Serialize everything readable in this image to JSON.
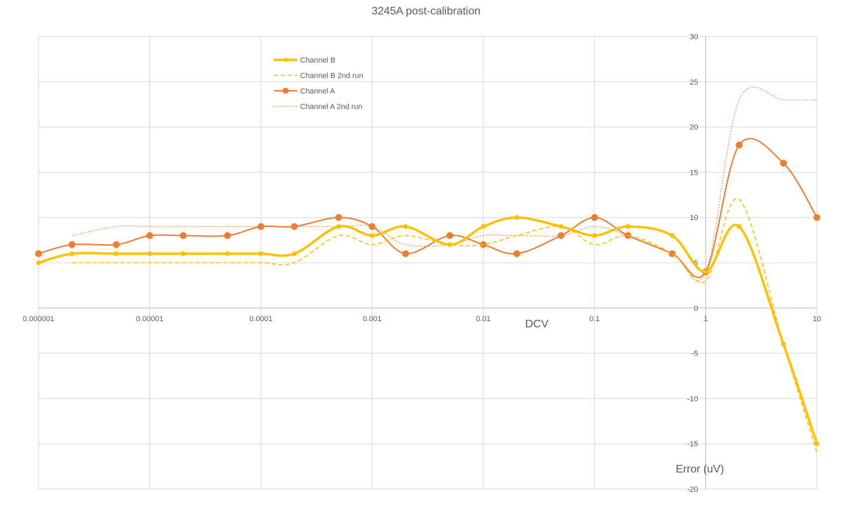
{
  "chart_data": {
    "type": "line",
    "title": "3245A post-calibration",
    "xlabel": "DCV",
    "ylabel": "Error (uV)",
    "x_scale": "log",
    "xlim": [
      1e-06,
      10
    ],
    "ylim": [
      -20,
      30
    ],
    "y_ticks": [
      30,
      25,
      20,
      15,
      10,
      5,
      0,
      -5,
      -10,
      -15,
      -20
    ],
    "x_ticks": [
      {
        "value": 1e-06,
        "label": "0.000001"
      },
      {
        "value": 1e-05,
        "label": "0.00001"
      },
      {
        "value": 0.0001,
        "label": "0.0001"
      },
      {
        "value": 0.001,
        "label": "0.001"
      },
      {
        "value": 0.01,
        "label": "0.01"
      },
      {
        "value": 0.1,
        "label": "0.1"
      },
      {
        "value": 1,
        "label": "1"
      },
      {
        "value": 10,
        "label": "10"
      }
    ],
    "grid": true,
    "legend_position": "top-left",
    "x": [
      1e-06,
      2e-06,
      5e-06,
      1e-05,
      2e-05,
      5e-05,
      0.0001,
      0.0002,
      0.0005,
      0.001,
      0.002,
      0.005,
      0.01,
      0.02,
      0.05,
      0.1,
      0.2,
      0.5,
      1,
      2,
      5,
      10
    ],
    "series": [
      {
        "name": "Channel B",
        "color": "#FFC000",
        "style": "solid-thick",
        "marker": "small-dot",
        "values": [
          5,
          6,
          6,
          6,
          6,
          6,
          6,
          6,
          9,
          8,
          9,
          7,
          9,
          10,
          9,
          8,
          9,
          8,
          4,
          9,
          -4,
          -15
        ]
      },
      {
        "name": "Channel B 2nd run",
        "color": "#FFC000",
        "style": "dashed",
        "marker": "none",
        "values": [
          null,
          5,
          5,
          5,
          5,
          5,
          5,
          5,
          8,
          7,
          8,
          7,
          7,
          8,
          9,
          7,
          8,
          6,
          3,
          12,
          -4,
          -16
        ]
      },
      {
        "name": "Channel A",
        "color": "#ED7D31",
        "style": "solid",
        "marker": "dot",
        "values": [
          6,
          7,
          7,
          8,
          8,
          8,
          9,
          9,
          10,
          9,
          6,
          8,
          7,
          6,
          8,
          10,
          8,
          6,
          4,
          18,
          16,
          10
        ]
      },
      {
        "name": "Channel A 2nd run",
        "color": "#ED7D31",
        "style": "dotted",
        "marker": "none",
        "values": [
          null,
          8,
          9,
          9,
          9,
          9,
          9,
          9,
          9,
          9,
          7,
          7,
          8,
          8,
          8,
          9,
          8,
          6,
          4,
          23,
          23,
          23
        ]
      }
    ]
  }
}
